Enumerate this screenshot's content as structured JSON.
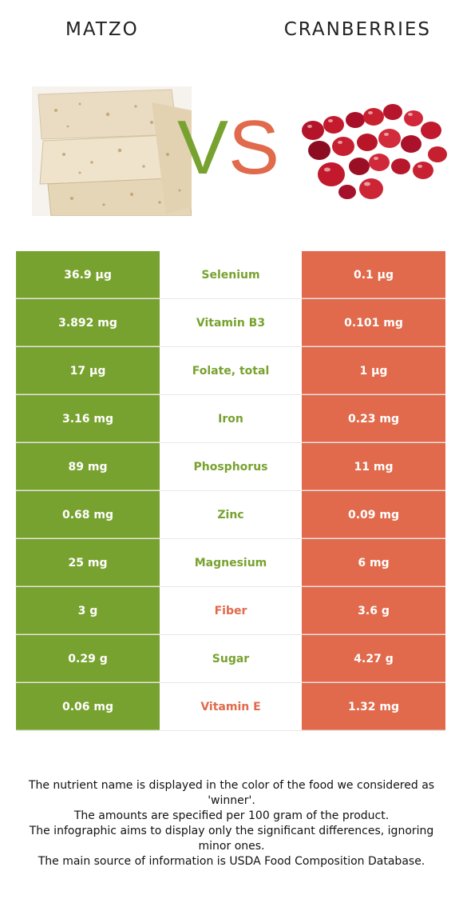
{
  "header": {
    "left_food": "MATZO",
    "right_food": "CRANBERRIES",
    "vs_v": "V",
    "vs_s": "S"
  },
  "colors": {
    "left_winner": "#78a22f",
    "right_winner": "#e06a4b"
  },
  "icons": {
    "left_image": "matzo-image",
    "right_image": "cranberries-image"
  },
  "rows": [
    {
      "left": "36.9 µg",
      "name": "Selenium",
      "right": "0.1 µg",
      "winner": "left"
    },
    {
      "left": "3.892 mg",
      "name": "Vitamin B3",
      "right": "0.101 mg",
      "winner": "left"
    },
    {
      "left": "17 µg",
      "name": "Folate, total",
      "right": "1 µg",
      "winner": "left"
    },
    {
      "left": "3.16 mg",
      "name": "Iron",
      "right": "0.23 mg",
      "winner": "left"
    },
    {
      "left": "89 mg",
      "name": "Phosphorus",
      "right": "11 mg",
      "winner": "left"
    },
    {
      "left": "0.68 mg",
      "name": "Zinc",
      "right": "0.09 mg",
      "winner": "left"
    },
    {
      "left": "25 mg",
      "name": "Magnesium",
      "right": "6 mg",
      "winner": "left"
    },
    {
      "left": "3 g",
      "name": "Fiber",
      "right": "3.6 g",
      "winner": "right"
    },
    {
      "left": "0.29 g",
      "name": "Sugar",
      "right": "4.27 g",
      "winner": "left"
    },
    {
      "left": "0.06 mg",
      "name": "Vitamin E",
      "right": "1.32 mg",
      "winner": "right"
    }
  ],
  "footer": {
    "line1": "The nutrient name is displayed in the color of the food we considered as 'winner'.",
    "line2": "The amounts are specified per 100 gram of the product.",
    "line3": "The infographic aims to display only the significant differences, ignoring minor ones.",
    "line4": "The main source of information is USDA Food Composition Database."
  }
}
